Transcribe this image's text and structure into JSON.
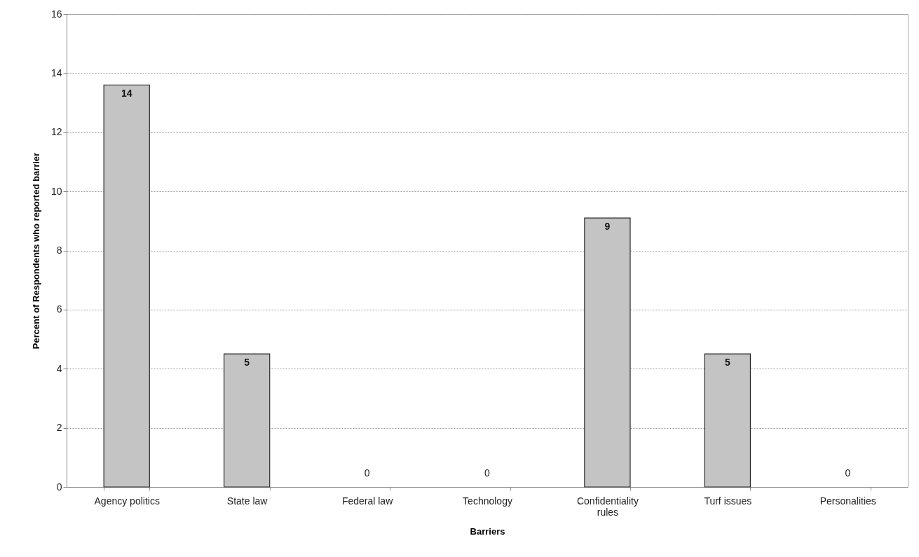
{
  "chart_data": {
    "type": "bar",
    "xlabel": "Barriers",
    "ylabel": "Percent of Respondents who reported barrier",
    "categories": [
      "Agency politics",
      "State law",
      "Federal law",
      "Technology",
      "Confidentiality rules",
      "Turf issues",
      "Personalities"
    ],
    "values": [
      13.6,
      4.5,
      0,
      0,
      9.1,
      4.5,
      0
    ],
    "value_labels": [
      "14",
      "5",
      "0",
      "0",
      "9",
      "5",
      "0"
    ],
    "color": "#c4c4c4",
    "ylim": [
      0,
      16
    ],
    "yticks": [
      0,
      2,
      4,
      6,
      8,
      10,
      12,
      14,
      16
    ],
    "grid": "y"
  }
}
